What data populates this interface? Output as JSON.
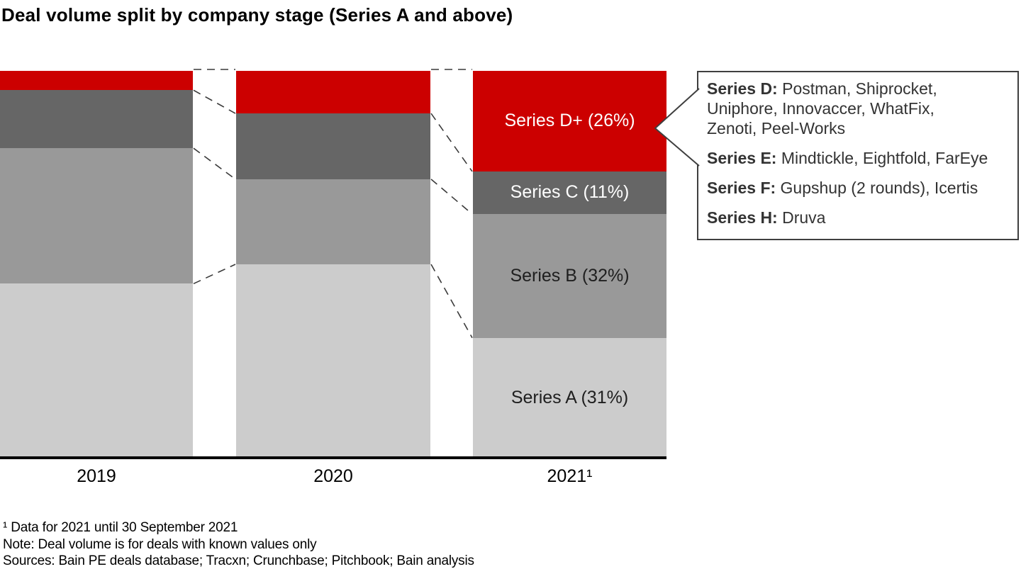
{
  "title": "Deal volume split by company stage (Series A and above)",
  "chart_data": {
    "type": "bar",
    "subtype": "stacked-100-percent",
    "title": "Deal volume split by company stage (Series A and above)",
    "categories": [
      "2019",
      "2020",
      "2021¹"
    ],
    "series": [
      {
        "name": "Series A",
        "color": "#cccccc",
        "label_color": "#1f1f1f",
        "values": [
          45,
          50,
          31
        ],
        "data_labels": [
          null,
          null,
          "Series A (31%)"
        ]
      },
      {
        "name": "Series B",
        "color": "#999999",
        "label_color": "#1f1f1f",
        "values": [
          35,
          22,
          32
        ],
        "data_labels": [
          null,
          null,
          "Series B (32%)"
        ]
      },
      {
        "name": "Series C",
        "color": "#666666",
        "label_color": "#ffffff",
        "values": [
          15,
          17,
          11
        ],
        "data_labels": [
          null,
          null,
          "Series C (11%)"
        ]
      },
      {
        "name": "Series D+",
        "color": "#cc0000",
        "label_color": "#ffffff",
        "values": [
          5,
          11,
          26
        ],
        "data_labels": [
          null,
          null,
          "Series D+ (26%)"
        ]
      }
    ],
    "xlabel": "",
    "ylabel": "",
    "ylim": [
      0,
      100
    ],
    "grid": false,
    "legend_position": "none",
    "connector_lines": "dashed lines join segment boundaries between adjacent bars",
    "accent_color": "#cc0000",
    "axis_color": "#000000"
  },
  "callout": {
    "entries": [
      {
        "label": "Series D:",
        "text": " Postman, Shiprocket,\nUniphore, Innovaccer, WhatFix,\nZenoti, Peel-Works"
      },
      {
        "label": "Series E:",
        "text": " Mindtickle, Eightfold, FarEye"
      },
      {
        "label": "Series F:",
        "text": " Gupshup (2 rounds), Icertis"
      },
      {
        "label": "Series H:",
        "text": " Druva"
      }
    ]
  },
  "footnotes": [
    "¹ Data for 2021 until 30 September 2021",
    "Note: Deal volume is for deals with known values only",
    "Sources: Bain PE deals database; Tracxn; Crunchbase; Pitchbook; Bain analysis"
  ]
}
